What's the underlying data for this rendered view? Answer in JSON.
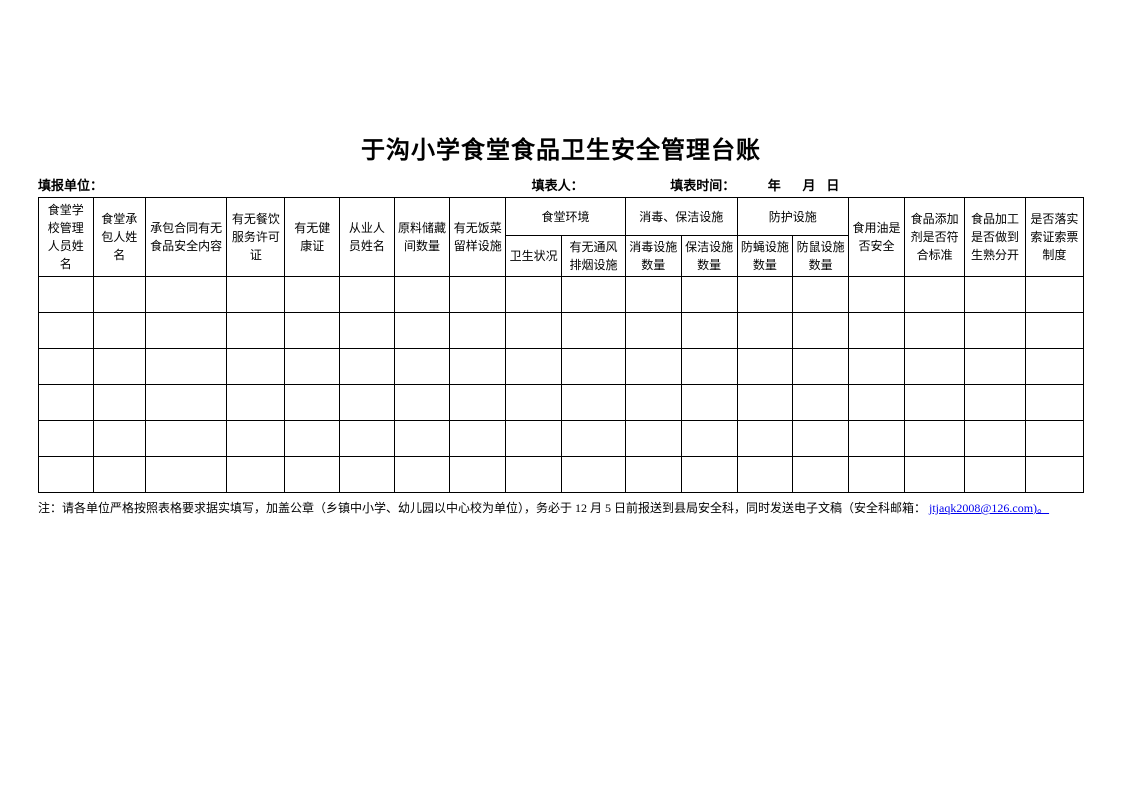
{
  "title": "于沟小学食堂食品卫生安全管理台账",
  "meta": {
    "unit_label": "填报单位：",
    "filler_label": "填表人：",
    "time_label": "填表时间：",
    "time_year": "年",
    "time_month": "月",
    "time_day": "日"
  },
  "table": {
    "columns_row1": [
      "食堂学校管理人员姓名",
      "食堂承包人姓名",
      "承包合同有无食品安全内容",
      "有无餐饮服务许可证",
      "有无健康证",
      "从业人员姓名",
      "原料储藏间数量",
      "有无饭菜留样设施",
      "食堂环境",
      "消毒、保洁设施",
      "防护设施",
      "食用油是否安全",
      "食品添加剂是否符合标准",
      "食品加工是否做到生熟分开",
      "是否落实索证索票制度"
    ],
    "columns_row2": [
      "卫生状况",
      "有无通风排烟设施",
      "消毒设施数量",
      "保洁设施数量",
      "防蝇设施数量",
      "防鼠设施数量"
    ],
    "body_rows": 6,
    "body_cols": 18,
    "border_color": "#000000",
    "font_size_header": 12,
    "font_size_body": 12,
    "background_color": "#ffffff"
  },
  "note": {
    "prefix": "注：请各单位严格按照表格要求据实填写，加盖公章（乡镇中小学、幼儿园以中心校为单位），务必于 12 月 5 日前报送到县局安全科，同时发送电子文稿（安全科邮箱：",
    "link_text": "jtjaqk2008@126.com)。",
    "link_href": "mailto:jtjaqk2008@126.com"
  },
  "colors": {
    "text": "#000000",
    "background": "#ffffff",
    "link": "#0000ee",
    "border": "#000000"
  }
}
